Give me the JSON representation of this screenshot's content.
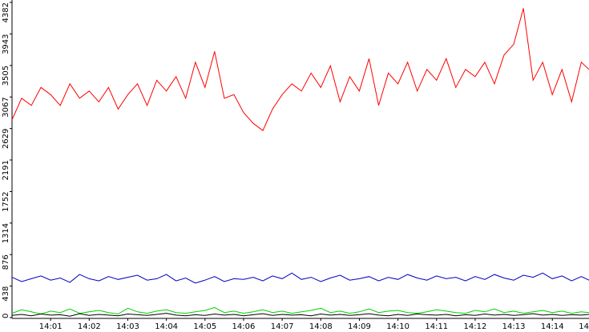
{
  "chart_data": {
    "type": "line",
    "x": [
      0,
      0.25,
      0.5,
      0.75,
      1,
      1.25,
      1.5,
      1.75,
      2,
      2.25,
      2.5,
      2.75,
      3,
      3.25,
      3.5,
      3.75,
      4,
      4.25,
      4.5,
      4.75,
      5,
      5.25,
      5.5,
      5.75,
      6,
      6.25,
      6.5,
      6.75,
      7,
      7.25,
      7.5,
      7.75,
      8,
      8.25,
      8.5,
      8.75,
      9,
      9.25,
      9.5,
      9.75,
      10,
      10.25,
      10.5,
      10.75,
      11,
      11.25,
      11.5,
      11.75,
      12,
      12.25,
      12.5,
      12.75,
      13,
      13.25,
      13.5,
      13.75,
      14,
      14.25,
      14.5,
      14.75,
      14.95
    ],
    "series": [
      {
        "color": "#ff0000",
        "values": [
          2750,
          3050,
          2950,
          3200,
          3100,
          2950,
          3250,
          3050,
          3150,
          3000,
          3200,
          2900,
          3100,
          3250,
          2950,
          3300,
          3150,
          3350,
          3050,
          3550,
          3200,
          3700,
          3050,
          3100,
          2850,
          2700,
          2600,
          2900,
          3100,
          3250,
          3150,
          3400,
          3200,
          3500,
          3000,
          3350,
          3150,
          3600,
          2950,
          3400,
          3250,
          3550,
          3150,
          3450,
          3300,
          3600,
          3200,
          3450,
          3350,
          3550,
          3250,
          3650,
          3800,
          4300,
          3300,
          3550,
          3100,
          3450,
          3000,
          3550,
          3450
        ]
      },
      {
        "color": "#0000c0",
        "values": [
          560,
          500,
          540,
          580,
          520,
          550,
          490,
          600,
          540,
          510,
          570,
          530,
          560,
          590,
          520,
          540,
          600,
          510,
          550,
          480,
          520,
          570,
          500,
          540,
          530,
          560,
          510,
          580,
          540,
          620,
          530,
          560,
          500,
          550,
          590,
          520,
          540,
          570,
          510,
          560,
          530,
          600,
          550,
          520,
          580,
          540,
          560,
          510,
          570,
          530,
          600,
          550,
          520,
          590,
          560,
          620,
          540,
          580,
          510,
          570,
          520
        ]
      },
      {
        "color": "#00d000",
        "values": [
          60,
          110,
          80,
          50,
          90,
          70,
          120,
          60,
          80,
          100,
          70,
          50,
          130,
          80,
          60,
          90,
          110,
          70,
          60,
          80,
          100,
          140,
          70,
          90,
          60,
          80,
          110,
          70,
          90,
          60,
          80,
          100,
          130,
          70,
          90,
          60,
          80,
          120,
          70,
          90,
          100,
          70,
          60,
          80,
          110,
          90,
          70,
          60,
          100,
          80,
          120,
          70,
          90,
          60,
          80,
          100,
          70,
          90,
          60,
          80,
          70
        ]
      },
      {
        "color": "#000000",
        "values": [
          30,
          45,
          25,
          50,
          35,
          40,
          20,
          55,
          30,
          45,
          35,
          25,
          50,
          40,
          30,
          45,
          60,
          35,
          25,
          40,
          30,
          50,
          35,
          45,
          25,
          40,
          55,
          30,
          45,
          35,
          40,
          25,
          50,
          35,
          45,
          30,
          40,
          55,
          35,
          25,
          45,
          30,
          50,
          40,
          35,
          45,
          25,
          40,
          30,
          50,
          35,
          45,
          30,
          40,
          55,
          35,
          45,
          30,
          40,
          35,
          45
        ]
      }
    ],
    "xlim": [
      0,
      14.95
    ],
    "xticks": [
      {
        "value": 1,
        "label": "14:01"
      },
      {
        "value": 2,
        "label": "14:02"
      },
      {
        "value": 3,
        "label": "14:03"
      },
      {
        "value": 4,
        "label": "14:04"
      },
      {
        "value": 5,
        "label": "14:05"
      },
      {
        "value": 6,
        "label": "14:06"
      },
      {
        "value": 7,
        "label": "14:07"
      },
      {
        "value": 8,
        "label": "14:08"
      },
      {
        "value": 9,
        "label": "14:09"
      },
      {
        "value": 10,
        "label": "14:10"
      },
      {
        "value": 11,
        "label": "14:11"
      },
      {
        "value": 12,
        "label": "14:12"
      },
      {
        "value": 13,
        "label": "14:13"
      },
      {
        "value": 14,
        "label": "14:14"
      },
      {
        "value": 15,
        "label": "14"
      }
    ],
    "ylim": [
      0,
      4382
    ],
    "yticks": [
      0,
      438,
      876,
      1314,
      1752,
      2191,
      2629,
      3067,
      3505,
      3943,
      4382
    ],
    "grid": false
  }
}
